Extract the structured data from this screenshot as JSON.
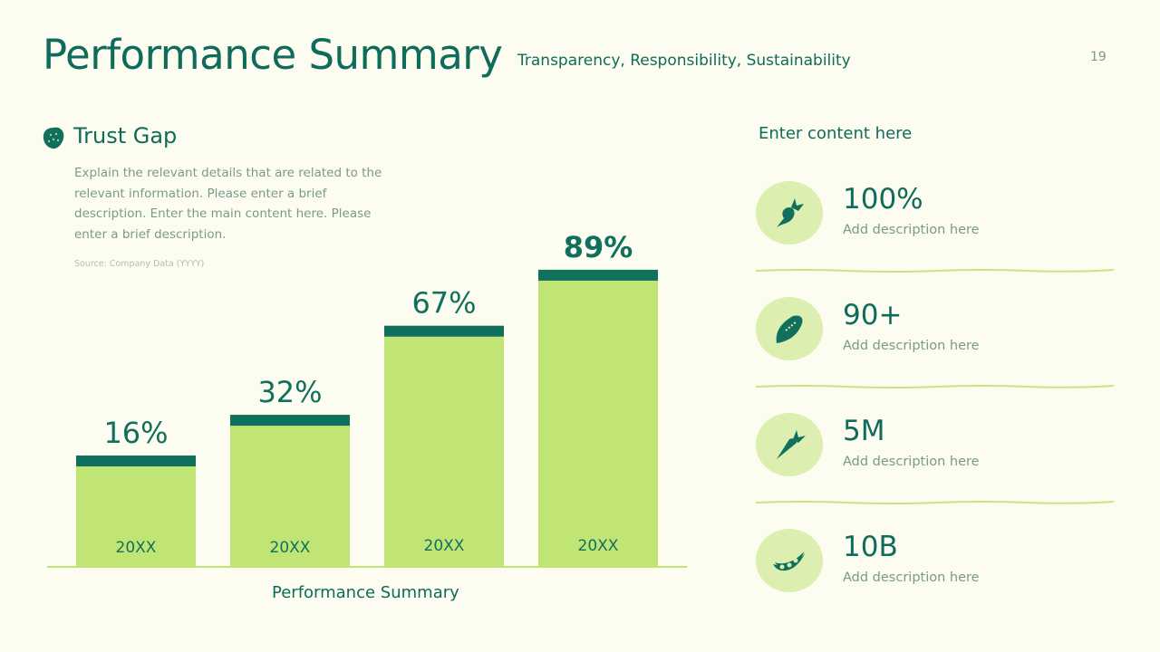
{
  "header": {
    "title": "Performance Summary",
    "subtitle": "Transparency, Responsibility, Sustainability",
    "page_number": "19"
  },
  "left": {
    "heading": "Trust Gap",
    "icon": "strawberry-icon",
    "description": "Explain the relevant details that are related to the relevant information. Please enter a brief description. Enter the main content here. Please enter a brief description.",
    "source": "Source: Company Data (YYYY)"
  },
  "chart_data": {
    "type": "bar",
    "categories": [
      "20XX",
      "20XX",
      "20XX",
      "20XX"
    ],
    "values": [
      16,
      32,
      67,
      89
    ],
    "data_labels": [
      "16%",
      "32%",
      "67%",
      "89%"
    ],
    "xlabel": "Performance Summary",
    "ylabel": "",
    "ylim": [
      0,
      100
    ],
    "grid": false,
    "colors": {
      "bar": "#c1e574",
      "cap": "#11705d",
      "axis": "#c1e574"
    }
  },
  "right": {
    "heading": "Enter content here",
    "stats": [
      {
        "value": "100%",
        "description": "Add description here",
        "icon": "radish-icon"
      },
      {
        "value": "90+",
        "description": "Add description here",
        "icon": "corn-icon"
      },
      {
        "value": "5M",
        "description": "Add description here",
        "icon": "carrot-icon"
      },
      {
        "value": "10B",
        "description": "Add description here",
        "icon": "pea-pod-icon"
      }
    ]
  }
}
